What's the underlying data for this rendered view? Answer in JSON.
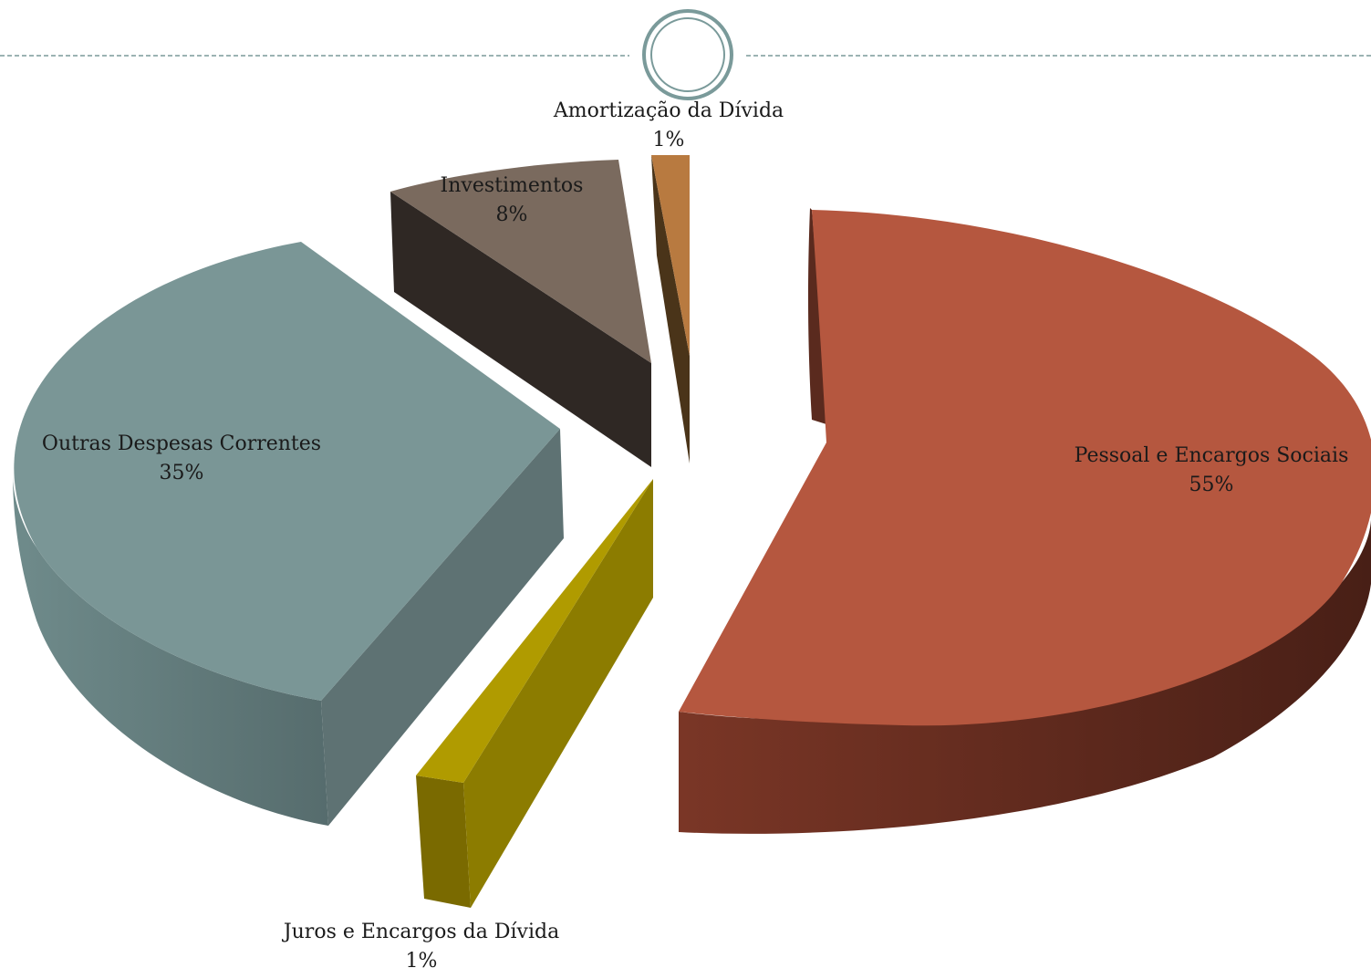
{
  "chart_data": {
    "type": "pie",
    "style": "3d-exploded",
    "title": "",
    "legend": "none",
    "slices": [
      {
        "name": "Pessoal e Encargos Sociais",
        "value": 55,
        "pct_label": "55%",
        "color": "#b5573f"
      },
      {
        "name": "Juros e Encargos da Dívida",
        "value": 1,
        "pct_label": "1%",
        "color": "#b09b00"
      },
      {
        "name": "Outras Despesas Correntes",
        "value": 35,
        "pct_label": "35%",
        "color": "#7a9696"
      },
      {
        "name": "Investimentos",
        "value": 8,
        "pct_label": "8%",
        "color": "#7a6a5e"
      },
      {
        "name": "Amortização da Dívida",
        "value": 1,
        "pct_label": "1%",
        "color": "#b87a40"
      }
    ]
  },
  "decor": {
    "line_color": "#7a9a9a",
    "circle_color": "#7a9a9a"
  }
}
